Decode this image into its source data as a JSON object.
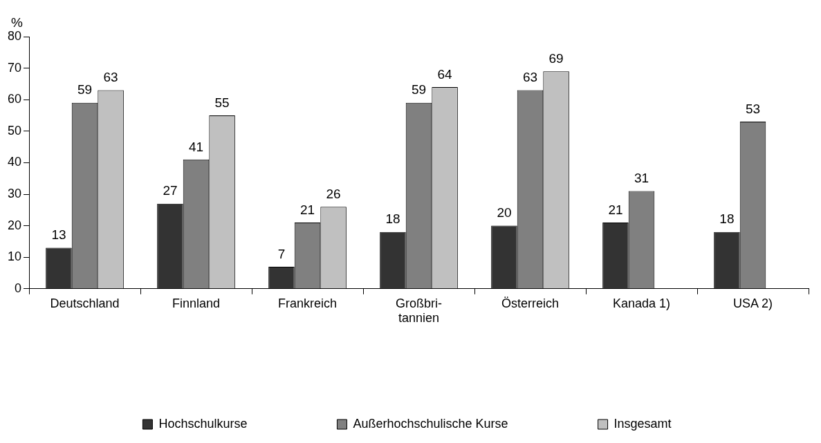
{
  "chart_data": {
    "type": "bar",
    "ylabel": "%",
    "categories": [
      "Deutschland",
      "Finnland",
      "Frankreich",
      "Großbri-\ntannien",
      "Österreich",
      "Kanada 1)",
      "USA 2)"
    ],
    "series": [
      {
        "name": "Hochschulkurse",
        "color": "#333333",
        "values": [
          13,
          27,
          7,
          18,
          20,
          21,
          18
        ]
      },
      {
        "name": "Außerhochschulische Kurse",
        "color": "#808080",
        "values": [
          59,
          41,
          21,
          59,
          63,
          31,
          53
        ]
      },
      {
        "name": "Insgesamt",
        "color": "#c0c0c0",
        "values": [
          63,
          55,
          26,
          64,
          69,
          null,
          null
        ]
      }
    ],
    "ylim": [
      0,
      80
    ],
    "yticks": [
      0,
      10,
      20,
      30,
      40,
      50,
      60,
      70,
      80
    ],
    "grid": false,
    "legend": "bottom",
    "data_labels": true
  }
}
